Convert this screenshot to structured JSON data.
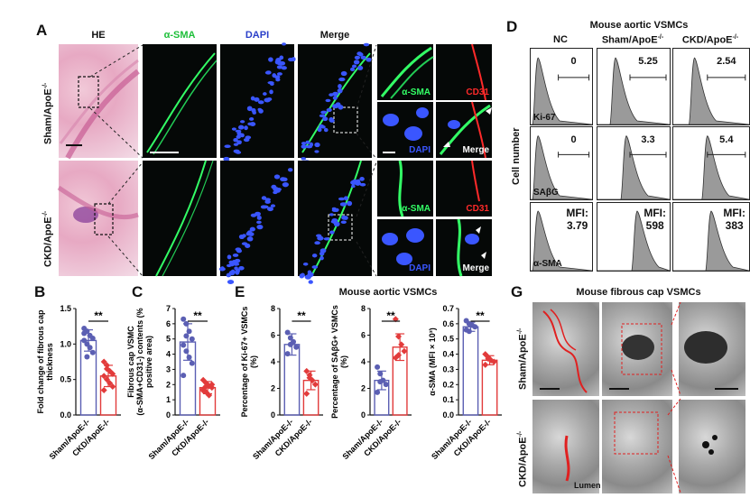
{
  "panel_letters": {
    "A": "A",
    "B": "B",
    "C": "C",
    "D": "D",
    "E": "E",
    "G": "G"
  },
  "panelA": {
    "col_headers": [
      "HE",
      "α-SMA",
      "DAPI",
      "Merge"
    ],
    "row_labels": [
      "Sham/ApoE",
      "CKD/ApoE"
    ],
    "row_label_superscript": "-/-",
    "inset_tags": {
      "asma": "α-SMA",
      "cd31": "CD31",
      "dapi": "DAPI",
      "merge": "Merge"
    }
  },
  "panelD": {
    "title": "Mouse aortic VSMCs",
    "col_headers": [
      "NC",
      "Sham/ApoE",
      "CKD/ApoE"
    ],
    "col_superscript": "-/-",
    "y_label": "Cell number",
    "rows": [
      {
        "marker": "Ki-67",
        "values": [
          "0",
          "5.25",
          "2.54"
        ]
      },
      {
        "marker": "SAβG",
        "values": [
          "0",
          "3.3",
          "5.4"
        ]
      },
      {
        "marker": "α-SMA",
        "values": [
          "MFI:\n3.79",
          "MFI:\n598",
          "MFI:\n383"
        ]
      }
    ]
  },
  "panelE_title": "Mouse aortic VSMCs",
  "panelG": {
    "title": "Mouse fibrous cap VSMCs",
    "row_labels": [
      "Sham/ApoE",
      "CKD/ApoE"
    ],
    "row_label_superscript": "-/-",
    "lumen": "Lumen"
  },
  "colors": {
    "sham": "#5b5fb3",
    "ckd": "#e23b3b",
    "he": "#e8b4c8",
    "fluor_green": "#33ff66",
    "fluor_red": "#ff2a2a",
    "fluor_blue": "#3a56ff"
  },
  "chart_data": [
    {
      "id": "B",
      "type": "scatter",
      "ylabel": "Fold change of fibrous cap thickness",
      "categories": [
        "Sham/ApoE-/-",
        "CKD/ApoE-/-"
      ],
      "ylim": [
        0,
        1.5
      ],
      "yticks": [
        "0.0",
        "0.5",
        "1.0",
        "1.5"
      ],
      "significance": "**",
      "series": [
        {
          "name": "Sham/ApoE-/-",
          "mean": 1.05,
          "err": 0.15,
          "values": [
            1.22,
            1.18,
            1.12,
            1.08,
            1.05,
            1.0,
            0.95,
            0.88,
            1.15,
            0.82
          ]
        },
        {
          "name": "CKD/ApoE-/-",
          "mean": 0.55,
          "err": 0.15,
          "values": [
            0.75,
            0.7,
            0.62,
            0.58,
            0.55,
            0.5,
            0.45,
            0.4,
            0.35,
            0.65
          ]
        }
      ]
    },
    {
      "id": "C",
      "type": "scatter",
      "ylabel": "Fibrous cap VSMC (α-SMA+CD31-) contents (% positive area)",
      "categories": [
        "Sham/ApoE-/-",
        "CKD/ApoE-/-"
      ],
      "ylim": [
        0,
        7
      ],
      "yticks": [
        "0",
        "1",
        "2",
        "3",
        "4",
        "5",
        "6",
        "7"
      ],
      "significance": "**",
      "series": [
        {
          "name": "Sham/ApoE-/-",
          "mean": 4.8,
          "err": 1.2,
          "values": [
            6.3,
            6.0,
            5.5,
            5.0,
            4.6,
            4.2,
            3.8,
            3.4,
            2.6,
            5.2
          ]
        },
        {
          "name": "CKD/ApoE-/-",
          "mean": 1.8,
          "err": 0.4,
          "values": [
            2.3,
            2.1,
            1.9,
            1.8,
            1.7,
            1.5,
            1.3,
            2.0,
            1.6,
            1.9
          ]
        }
      ]
    },
    {
      "id": "E1",
      "type": "scatter",
      "ylabel": "Percentage of Ki-67+ VSMCs (%)",
      "categories": [
        "Sham/ApoE-/-",
        "CKD/ApoE-/-"
      ],
      "ylim": [
        0,
        8
      ],
      "yticks": [
        "0",
        "2",
        "4",
        "6",
        "8"
      ],
      "significance": "**",
      "series": [
        {
          "name": "Sham/ApoE-/-",
          "mean": 5.3,
          "err": 0.8,
          "values": [
            6.2,
            5.8,
            5.5,
            5.1,
            4.6,
            5.3
          ]
        },
        {
          "name": "CKD/ApoE-/-",
          "mean": 2.6,
          "err": 0.7,
          "values": [
            3.3,
            3.0,
            2.6,
            2.3,
            1.6,
            2.8
          ]
        }
      ]
    },
    {
      "id": "E2",
      "type": "scatter",
      "ylabel": "Percentage of SAβG+ VSMCs (%)",
      "categories": [
        "Sham/ApoE-/-",
        "CKD/ApoE-/-"
      ],
      "ylim": [
        0,
        8
      ],
      "yticks": [
        "0",
        "2",
        "4",
        "6",
        "8"
      ],
      "significance": "**",
      "series": [
        {
          "name": "Sham/ApoE-/-",
          "mean": 2.6,
          "err": 0.7,
          "values": [
            3.6,
            3.1,
            2.6,
            2.3,
            1.7,
            2.5
          ]
        },
        {
          "name": "CKD/ApoE-/-",
          "mean": 5.1,
          "err": 1.0,
          "values": [
            7.2,
            5.9,
            5.3,
            4.8,
            4.3,
            4.5
          ]
        }
      ]
    },
    {
      "id": "E3",
      "type": "scatter",
      "ylabel": "α-SMA (MFI × 10³)",
      "categories": [
        "Sham/ApoE-/-",
        "CKD/ApoE-/-"
      ],
      "ylim": [
        0,
        0.7
      ],
      "yticks": [
        "0.0",
        "0.1",
        "0.2",
        "0.3",
        "0.4",
        "0.5",
        "0.6",
        "0.7"
      ],
      "significance": "**",
      "series": [
        {
          "name": "Sham/ApoE-/-",
          "mean": 0.58,
          "err": 0.03,
          "values": [
            0.62,
            0.6,
            0.59,
            0.58,
            0.56,
            0.55
          ]
        },
        {
          "name": "CKD/ApoE-/-",
          "mean": 0.36,
          "err": 0.03,
          "values": [
            0.4,
            0.38,
            0.36,
            0.35,
            0.33,
            0.37
          ]
        }
      ]
    }
  ]
}
